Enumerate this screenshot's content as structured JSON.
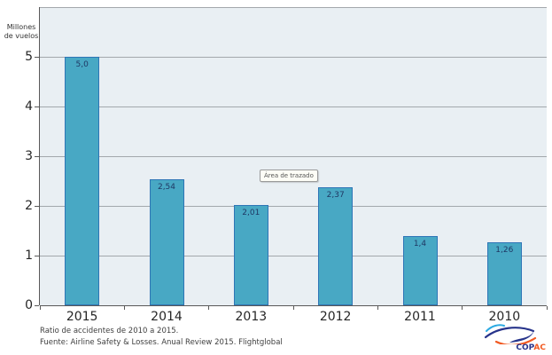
{
  "chart_data": {
    "type": "bar",
    "title": "",
    "y_axis_title_lines": [
      "Millones",
      "de vuelos"
    ],
    "categories": [
      "2015",
      "2014",
      "2013",
      "2012",
      "2011",
      "2010"
    ],
    "values": [
      5.0,
      2.54,
      2.01,
      2.37,
      1.4,
      1.26
    ],
    "value_labels": [
      "5,0",
      "2,54",
      "2,01",
      "2,37",
      "1,4",
      "1,26"
    ],
    "ylim": [
      0,
      6
    ],
    "yticks": [
      0,
      1,
      2,
      3,
      4,
      5
    ],
    "grid": true,
    "legend": "none",
    "plot_bg": "#E9EFF3",
    "gridline_color": "#A3A8AC",
    "axis_color": "#595959",
    "bar_color": "#48A8C4",
    "bar_border_color": "#2E75B6",
    "value_label_color": "#1F3864",
    "tick_label_color": "#262626"
  },
  "tooltip": {
    "label": "Área de trazado"
  },
  "footer": {
    "line1": "Ratio de accidentes de 2010 a 2015.",
    "line2": "Fuente: Airline Safety & Losses. Anual Review 2015. Flightglobal"
  },
  "logo": {
    "text_primary": "COP",
    "text_secondary": "AC",
    "primary_color": "#27348B",
    "secondary_color": "#F15A22",
    "swoosh_blue": "#27348B",
    "swoosh_cyan": "#2BAAE2",
    "swoosh_orange": "#F15A22"
  }
}
